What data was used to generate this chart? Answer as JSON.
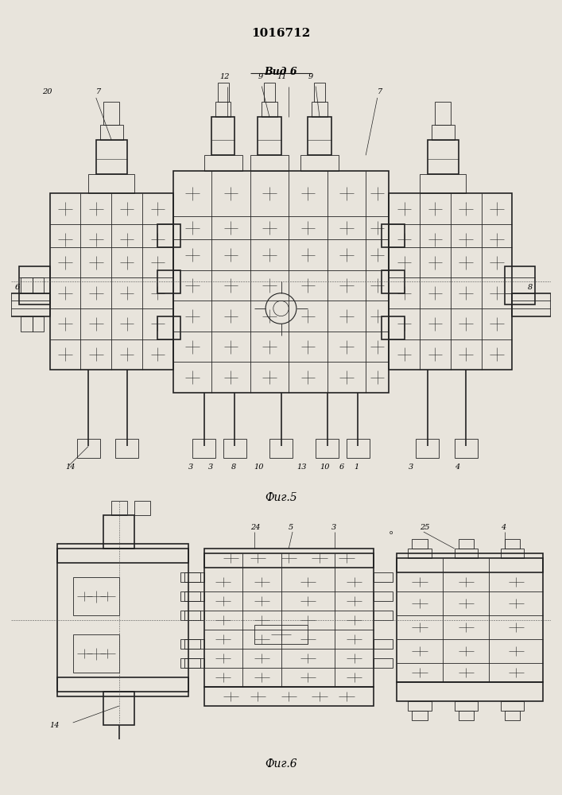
{
  "title": "1016712",
  "fig5_label": "Фиг.5",
  "fig6_label": "Фиг.6",
  "vid6_label": "Вид 6",
  "fig_width": 7.07,
  "fig_height": 10.0,
  "bg": "#e8e4dc",
  "lc": "#222222",
  "lw_main": 1.2,
  "lw_inner": 0.6,
  "lw_thin": 0.4
}
